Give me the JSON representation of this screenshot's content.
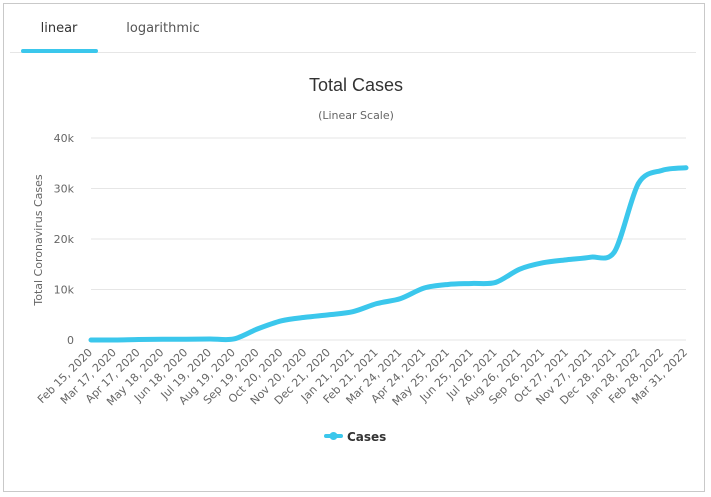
{
  "tabs": [
    {
      "label": "linear",
      "active": true
    },
    {
      "label": "logarithmic",
      "active": false
    }
  ],
  "colors": {
    "series": "#3bc7ec",
    "grid": "#e6e6e6",
    "text": "#666666",
    "title": "#333333"
  },
  "chart_data": {
    "type": "line",
    "title": "Total Cases",
    "subtitle": "(Linear Scale)",
    "ylabel": "Total Coronavirus Cases",
    "xlabel": "",
    "ylim": [
      0,
      40000
    ],
    "yticks": [
      0,
      10000,
      20000,
      30000,
      40000
    ],
    "ytick_labels": [
      "0",
      "10k",
      "20k",
      "30k",
      "40k"
    ],
    "grid": true,
    "legend_position": "bottom-center",
    "categories": [
      "Feb 15, 2020",
      "Mar 17, 2020",
      "Apr 17, 2020",
      "May 18, 2020",
      "Jun 18, 2020",
      "Jul 19, 2020",
      "Aug 19, 2020",
      "Sep 19, 2020",
      "Oct 20, 2020",
      "Nov 20, 2020",
      "Dec 21, 2020",
      "Jan 21, 2021",
      "Feb 21, 2021",
      "Mar 24, 2021",
      "Apr 24, 2021",
      "May 25, 2021",
      "Jun 25, 2021",
      "Jul 26, 2021",
      "Aug 26, 2021",
      "Sep 26, 2021",
      "Oct 27, 2021",
      "Nov 27, 2021",
      "Dec 28, 2021",
      "Jan 28, 2022",
      "Feb 28, 2022",
      "Mar 31, 2022"
    ],
    "series": [
      {
        "name": "Cases",
        "values": [
          0,
          0,
          100,
          150,
          150,
          200,
          200,
          2200,
          3800,
          4500,
          5000,
          5600,
          7200,
          8200,
          10300,
          11000,
          11200,
          11400,
          14000,
          15300,
          15900,
          16400,
          17500,
          31000,
          33600,
          34100
        ]
      }
    ]
  }
}
